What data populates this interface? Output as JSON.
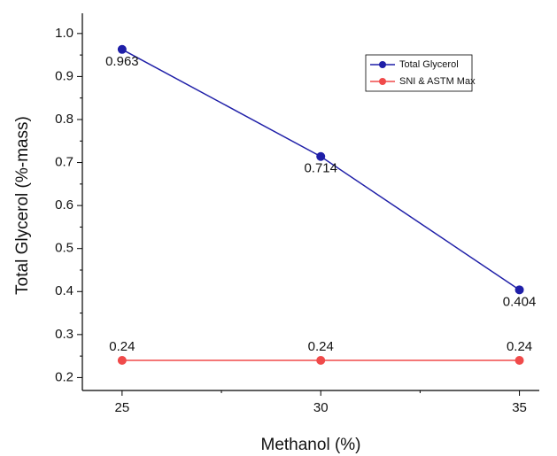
{
  "chart_data": {
    "type": "line",
    "x_label": "Methanol (%)",
    "y_label": "Total Glycerol (%-mass)",
    "x": [
      25,
      30,
      35
    ],
    "series": [
      {
        "name": "Total Glycerol",
        "color": "#1f1fa8",
        "values": [
          0.963,
          0.714,
          0.404
        ],
        "value_labels": [
          "0.963",
          "0.714",
          "0.404"
        ]
      },
      {
        "name": "SNI & ASTM Max",
        "color": "#f04a4a",
        "values": [
          0.24,
          0.24,
          0.24
        ],
        "value_labels": [
          "0.24",
          "0.24",
          "0.24"
        ]
      }
    ],
    "xlim": [
      24,
      35.5
    ],
    "xticks": [
      25,
      30,
      35
    ],
    "ylim": [
      0.17,
      1.047
    ],
    "yticks": [
      {
        "value": 0.2,
        "label": "0.2"
      },
      {
        "value": 0.3,
        "label": "0.3"
      },
      {
        "value": 0.4,
        "label": "0.4"
      },
      {
        "value": 0.5,
        "label": "0.5"
      },
      {
        "value": 0.6,
        "label": "0.6"
      },
      {
        "value": 0.7,
        "label": "0.7"
      },
      {
        "value": 0.8,
        "label": "0.8"
      },
      {
        "value": 0.9,
        "label": "0.9"
      },
      {
        "value": 1.0,
        "label": "1.0"
      }
    ],
    "legend": "upper right"
  }
}
